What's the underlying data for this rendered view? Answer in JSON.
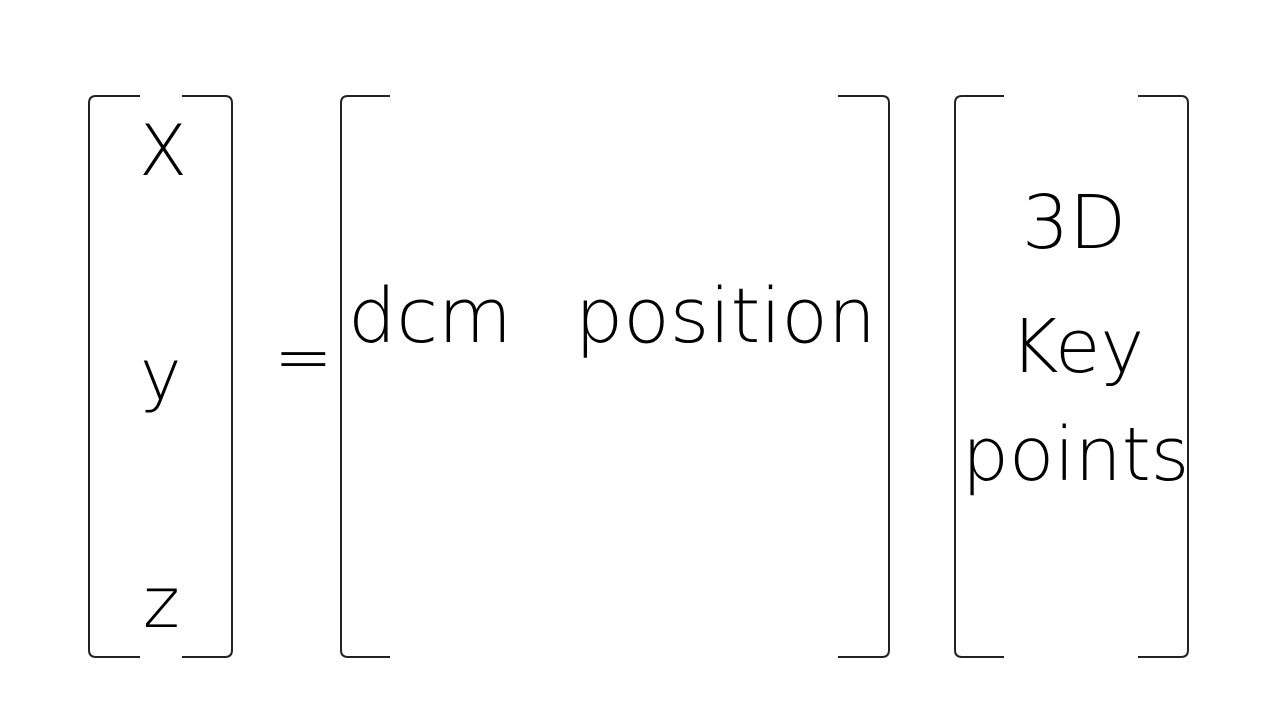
{
  "lhs_vector": {
    "x": "X",
    "y": "y",
    "z": "z"
  },
  "equals": "=",
  "transform_matrix": {
    "rotation": "dcm",
    "translation": "position"
  },
  "rhs_vector": {
    "line1": "3D",
    "line2": "Key",
    "line3": "points"
  },
  "colors": {
    "background": "#ffffff",
    "ink": "#000000",
    "bracket": "#222222"
  }
}
